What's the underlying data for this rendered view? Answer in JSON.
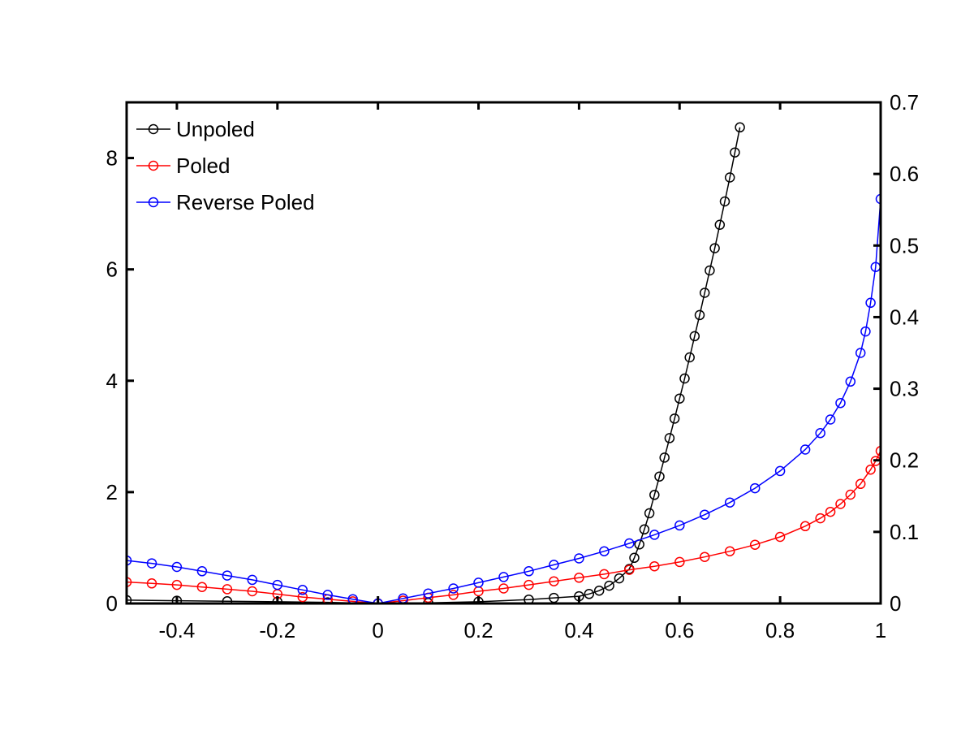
{
  "chart_data": {
    "type": "line",
    "title": "",
    "xlabel": "",
    "ylabel": "",
    "y2label": "",
    "xlim": [
      -0.5,
      1
    ],
    "ylim": [
      0,
      9
    ],
    "y2lim": [
      0,
      0.7
    ],
    "grid": false,
    "legend_placement": "top-left",
    "x_ticks": [
      -0.4,
      -0.2,
      0,
      0.2,
      0.4,
      0.6,
      0.8,
      1
    ],
    "x_tick_labels": [
      "-0.4",
      "-0.2",
      "0",
      "0.2",
      "0.4",
      "0.6",
      "0.8",
      "1"
    ],
    "y_ticks": [
      0,
      2,
      4,
      6,
      8
    ],
    "y_tick_labels": [
      "0",
      "2",
      "4",
      "6",
      "8"
    ],
    "y2_ticks": [
      0,
      0.1,
      0.2,
      0.3,
      0.4,
      0.5,
      0.6,
      0.7
    ],
    "y2_tick_labels": [
      "0",
      "0.1",
      "0.2",
      "0.3",
      "0.4",
      "0.5",
      "0.6",
      "0.7"
    ],
    "series": [
      {
        "name": "Unpoled",
        "color": "#000000",
        "axis": "left",
        "marker": "circle",
        "x": [
          -0.5,
          -0.4,
          -0.3,
          -0.2,
          -0.1,
          0,
          0.1,
          0.2,
          0.3,
          0.35,
          0.4,
          0.42,
          0.44,
          0.46,
          0.48,
          0.5,
          0.51,
          0.52,
          0.53,
          0.54,
          0.55,
          0.56,
          0.57,
          0.58,
          0.59,
          0.6,
          0.61,
          0.62,
          0.63,
          0.64,
          0.65,
          0.66,
          0.67,
          0.68,
          0.69,
          0.7,
          0.71,
          0.72
        ],
        "y": [
          0.06,
          0.05,
          0.04,
          0.03,
          0.02,
          0.0,
          0.01,
          0.03,
          0.07,
          0.1,
          0.13,
          0.17,
          0.23,
          0.32,
          0.45,
          0.62,
          0.82,
          1.06,
          1.33,
          1.62,
          1.95,
          2.28,
          2.62,
          2.97,
          3.32,
          3.68,
          4.04,
          4.42,
          4.8,
          5.18,
          5.58,
          5.98,
          6.38,
          6.8,
          7.22,
          7.65,
          8.1,
          8.55
        ]
      },
      {
        "name": "Poled",
        "color": "#ff0000",
        "axis": "right",
        "marker": "circle",
        "x": [
          -0.5,
          -0.45,
          -0.4,
          -0.35,
          -0.3,
          -0.25,
          -0.2,
          -0.15,
          -0.1,
          -0.05,
          0,
          0.05,
          0.1,
          0.15,
          0.2,
          0.25,
          0.3,
          0.35,
          0.4,
          0.45,
          0.5,
          0.55,
          0.6,
          0.65,
          0.7,
          0.75,
          0.8,
          0.85,
          0.88,
          0.9,
          0.92,
          0.94,
          0.96,
          0.98,
          0.99,
          1.0
        ],
        "y": [
          0.03,
          0.028,
          0.026,
          0.023,
          0.02,
          0.017,
          0.013,
          0.009,
          0.006,
          0.003,
          0.0,
          0.004,
          0.008,
          0.012,
          0.017,
          0.021,
          0.026,
          0.031,
          0.036,
          0.041,
          0.047,
          0.052,
          0.058,
          0.065,
          0.073,
          0.082,
          0.093,
          0.108,
          0.119,
          0.128,
          0.139,
          0.152,
          0.167,
          0.187,
          0.199,
          0.213
        ]
      },
      {
        "name": "Reverse Poled",
        "color": "#0000ff",
        "axis": "right",
        "marker": "circle",
        "x": [
          -0.5,
          -0.45,
          -0.4,
          -0.35,
          -0.3,
          -0.25,
          -0.2,
          -0.15,
          -0.1,
          -0.05,
          0,
          0.05,
          0.1,
          0.15,
          0.2,
          0.25,
          0.3,
          0.35,
          0.4,
          0.45,
          0.5,
          0.55,
          0.6,
          0.65,
          0.7,
          0.75,
          0.8,
          0.85,
          0.88,
          0.9,
          0.92,
          0.94,
          0.96,
          0.97,
          0.98,
          0.99,
          1.0
        ],
        "y": [
          0.06,
          0.056,
          0.051,
          0.045,
          0.039,
          0.033,
          0.026,
          0.019,
          0.012,
          0.006,
          0.0,
          0.007,
          0.014,
          0.021,
          0.029,
          0.037,
          0.045,
          0.054,
          0.063,
          0.073,
          0.084,
          0.096,
          0.109,
          0.124,
          0.141,
          0.161,
          0.185,
          0.215,
          0.238,
          0.257,
          0.28,
          0.31,
          0.35,
          0.38,
          0.42,
          0.47,
          0.565
        ]
      }
    ]
  }
}
